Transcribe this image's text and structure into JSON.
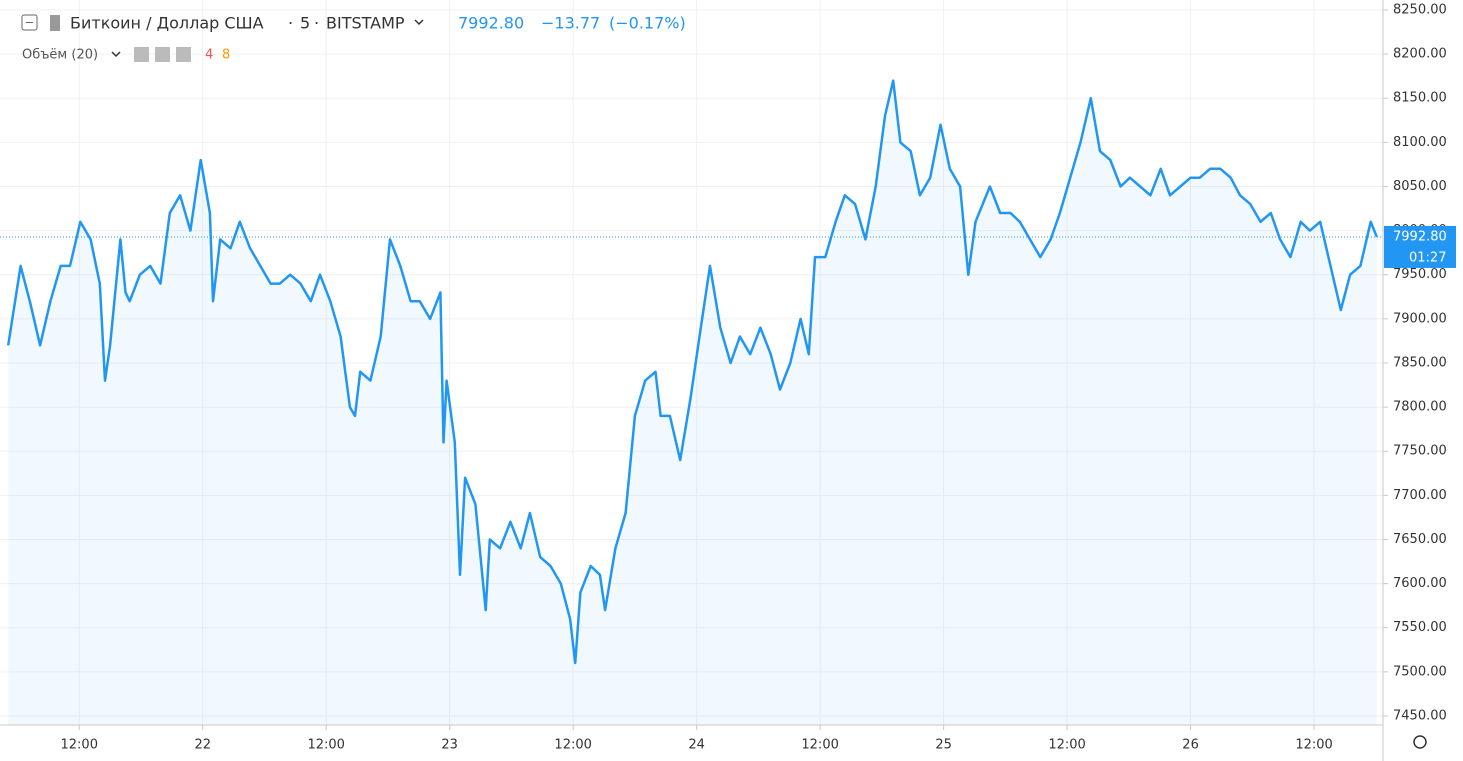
{
  "chart_data": {
    "type": "line",
    "interval": "5",
    "exchange": "BITSTAMP",
    "last_price": {
      "value": 7992.8,
      "label": "7992.80"
    },
    "change": "−13.77",
    "change_pct": "(−0.17%)",
    "countdown": "01:27",
    "volume_label": "Объём (20)",
    "volume_counts": [
      "4",
      "8"
    ],
    "x": [
      5.1,
      6.3,
      7.2,
      8.2,
      9.2,
      10.2,
      11.1,
      12.1,
      13.1,
      14.0,
      14.5,
      15.0,
      16.0,
      16.5,
      16.9,
      17.9,
      18.9,
      19.9,
      20.8,
      21.8,
      22.8,
      23.8,
      24.7,
      25.0,
      25.7,
      26.7,
      27.6,
      28.6,
      29.6,
      30.6,
      31.5,
      32.5,
      33.5,
      34.5,
      35.4,
      36.4,
      37.4,
      38.3,
      38.8,
      39.3,
      40.3,
      41.3,
      42.2,
      43.2,
      44.2,
      45.1,
      46.1,
      47.1,
      47.4,
      47.7,
      48.5,
      49.0,
      49.5,
      50.5,
      51.5,
      51.9,
      52.9,
      53.9,
      54.9,
      55.8,
      56.8,
      57.8,
      58.8,
      59.7,
      60.2,
      60.7,
      61.7,
      62.6,
      63.1,
      64.1,
      65.1,
      66.0,
      67.0,
      68.0,
      68.5,
      69.4,
      70.4,
      71.4,
      72.4,
      73.3,
      74.3,
      75.3,
      76.2,
      77.2,
      78.2,
      79.2,
      80.1,
      81.1,
      82.1,
      82.9,
      83.5,
      84.5,
      85.5,
      86.4,
      87.4,
      88.4,
      89.4,
      90.3,
      91.1,
      91.8,
      92.8,
      93.7,
      94.7,
      95.7,
      96.6,
      97.6,
      98.4,
      99.1,
      100.5,
      101.5,
      102.5,
      103.4,
      104.4,
      105.4,
      106.4,
      107.3,
      108.3,
      109.3,
      110.3,
      111.2,
      112.2,
      113.2,
      114.1,
      115.1,
      116.1,
      117.1,
      118.0,
      119.0,
      120.0,
      120.9,
      121.9,
      122.9,
      123.9,
      124.8,
      125.8,
      126.8,
      127.8,
      128.7,
      129.7,
      130.7,
      131.6,
      132.6,
      133.6,
      134.6,
      135.5,
      136.5,
      137.5,
      138.1
    ],
    "series": [
      {
        "name": "Биткоин / Доллар США",
        "color": "#2196f3",
        "values": [
          7870,
          7960,
          7920,
          7870,
          7920,
          7960,
          7960,
          8010,
          7990,
          7940,
          7830,
          7870,
          7990,
          7930,
          7920,
          7950,
          7960,
          7940,
          8020,
          8040,
          8000,
          8080,
          8020,
          7920,
          7990,
          7980,
          8010,
          7980,
          7960,
          7940,
          7940,
          7950,
          7940,
          7920,
          7950,
          7920,
          7880,
          7800,
          7790,
          7840,
          7830,
          7880,
          7990,
          7960,
          7920,
          7920,
          7900,
          7930,
          7760,
          7830,
          7760,
          7610,
          7720,
          7690,
          7570,
          7650,
          7640,
          7670,
          7640,
          7680,
          7630,
          7620,
          7600,
          7560,
          7510,
          7590,
          7620,
          7610,
          7570,
          7640,
          7680,
          7790,
          7830,
          7840,
          7790,
          7790,
          7740,
          7810,
          7890,
          7960,
          7890,
          7850,
          7880,
          7860,
          7890,
          7860,
          7820,
          7850,
          7900,
          7860,
          7970,
          7970,
          8010,
          8040,
          8030,
          7990,
          8050,
          8130,
          8170,
          8100,
          8090,
          8040,
          8060,
          8120,
          8070,
          8050,
          7950,
          8010,
          8050,
          8020,
          8020,
          8010,
          7990,
          7970,
          7990,
          8020,
          8060,
          8100,
          8150,
          8090,
          8080,
          8050,
          8060,
          8050,
          8040,
          8070,
          8040,
          8050,
          8060,
          8060,
          8070,
          8070,
          8060,
          8040,
          8030,
          8010,
          8020,
          7990,
          7970,
          8010,
          8000,
          8010,
          7960,
          7910,
          7950,
          7960,
          8010,
          7993
        ]
      }
    ],
    "xlim": [
      4.3,
      138.7
    ],
    "xticks": [
      {
        "value": 12,
        "label": "12:00"
      },
      {
        "value": 24,
        "label": "22"
      },
      {
        "value": 36,
        "label": "12:00"
      },
      {
        "value": 48,
        "label": "23"
      },
      {
        "value": 60,
        "label": "12:00"
      },
      {
        "value": 72,
        "label": "24"
      },
      {
        "value": 84,
        "label": "12:00"
      },
      {
        "value": 96,
        "label": "25"
      },
      {
        "value": 108,
        "label": "12:00"
      },
      {
        "value": 120,
        "label": "26"
      },
      {
        "value": 132,
        "label": "12:00"
      }
    ],
    "ylim": [
      7439.8,
      8261.3
    ],
    "yticks": [
      {
        "value": 7450,
        "label": "7450.00"
      },
      {
        "value": 7500,
        "label": "7500.00"
      },
      {
        "value": 7550,
        "label": "7550.00"
      },
      {
        "value": 7600,
        "label": "7600.00"
      },
      {
        "value": 7650,
        "label": "7650.00"
      },
      {
        "value": 7700,
        "label": "7700.00"
      },
      {
        "value": 7750,
        "label": "7750.00"
      },
      {
        "value": 7800,
        "label": "7800.00"
      },
      {
        "value": 7850,
        "label": "7850.00"
      },
      {
        "value": 7900,
        "label": "7900.00"
      },
      {
        "value": 7950,
        "label": "7950.00"
      },
      {
        "value": 8000,
        "label": "8000.00"
      },
      {
        "value": 8050,
        "label": "8050.00"
      },
      {
        "value": 8100,
        "label": "8100.00"
      },
      {
        "value": 8150,
        "label": "8150.00"
      },
      {
        "value": 8200,
        "label": "8200.00"
      },
      {
        "value": 8250,
        "label": "8250.00"
      }
    ],
    "grid": true
  }
}
